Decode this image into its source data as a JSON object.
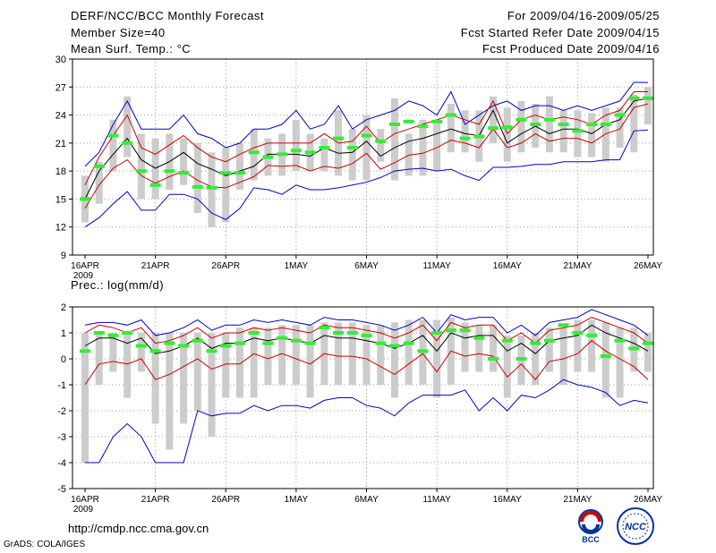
{
  "header": {
    "title": "DERF/NCC/BCC Monthly Forecast",
    "member_size": "Member Size=40",
    "variable": "Mean Surf. Temp.: °C",
    "for_period": "For 2009/04/16-2009/05/25",
    "started": "Fcst Started Refer Date 2009/04/15",
    "produced": "Fcst Produced Date 2009/04/16"
  },
  "footer": {
    "url": "http://cmdp.ncc.cma.gov.cn",
    "credit": "GrADS: COLA/IGES",
    "logo_bcc": "BCC",
    "logo_ncc": "NCC"
  },
  "colors": {
    "median": "#000000",
    "inner": "#cc0000",
    "outer": "#0000cc",
    "ensemble_mean": "#33ee33",
    "box": "#cccccc"
  },
  "chart_data": [
    {
      "type": "box-ensemble",
      "title": "Mean Surf. Temp.: °C",
      "ylim": [
        9,
        30
      ],
      "yticks": [
        9,
        12,
        15,
        18,
        21,
        24,
        27,
        30
      ],
      "x_tick_labels": [
        "16APR",
        "21APR",
        "26APR",
        "1MAY",
        "6MAY",
        "11MAY",
        "16MAY",
        "21MAY",
        "26MAY"
      ],
      "x_sub_label": "2009",
      "days": 41,
      "median": [
        15.0,
        18.0,
        19.8,
        21.5,
        19.2,
        18.3,
        19.0,
        20.0,
        18.8,
        18.2,
        17.5,
        18.0,
        18.5,
        19.8,
        19.8,
        19.8,
        19.6,
        20.5,
        19.9,
        20.0,
        21.2,
        19.6,
        20.5,
        21.2,
        21.5,
        22.0,
        22.5,
        22.0,
        21.8,
        24.5,
        21.0,
        22.0,
        22.8,
        22.0,
        22.5,
        22.5,
        22.0,
        23.0,
        23.5,
        25.5,
        25.8
      ],
      "upper_red": [
        16.5,
        19.5,
        21.8,
        24.0,
        20.5,
        19.8,
        20.8,
        21.8,
        20.5,
        19.5,
        19.0,
        19.8,
        20.5,
        21.0,
        21.0,
        21.0,
        21.0,
        22.0,
        21.0,
        21.2,
        22.8,
        21.0,
        22.0,
        22.5,
        23.0,
        23.5,
        24.0,
        23.5,
        23.0,
        25.5,
        22.0,
        23.5,
        24.0,
        23.5,
        23.8,
        23.5,
        23.0,
        24.0,
        24.5,
        26.5,
        26.5
      ],
      "lower_red": [
        14.0,
        16.5,
        18.3,
        19.2,
        17.5,
        16.7,
        17.4,
        18.0,
        17.0,
        16.3,
        16.2,
        16.8,
        17.4,
        18.6,
        18.5,
        18.6,
        18.0,
        18.5,
        18.3,
        18.8,
        19.9,
        18.2,
        18.9,
        19.7,
        19.9,
        20.5,
        21.3,
        21.0,
        20.5,
        22.5,
        20.5,
        21.0,
        22.0,
        21.2,
        21.5,
        21.5,
        21.0,
        22.0,
        22.5,
        24.8,
        25.2
      ],
      "upper_blue": [
        18.5,
        20.0,
        23.0,
        25.5,
        22.5,
        22.5,
        22.5,
        24.0,
        22.0,
        21.5,
        20.5,
        21.0,
        22.5,
        22.5,
        23.0,
        24.5,
        22.5,
        23.0,
        25.0,
        22.5,
        23.5,
        24.0,
        24.5,
        25.5,
        25.0,
        24.0,
        26.5,
        23.0,
        24.0,
        25.0,
        25.5,
        24.5,
        25.0,
        25.0,
        24.5,
        25.0,
        24.5,
        25.0,
        25.5,
        27.5,
        27.5
      ],
      "lower_blue": [
        12.0,
        13.0,
        14.5,
        15.8,
        13.8,
        13.8,
        15.5,
        15.5,
        15.0,
        13.5,
        12.8,
        14.0,
        16.2,
        16.0,
        15.5,
        16.5,
        16.0,
        16.0,
        16.2,
        16.5,
        16.8,
        17.3,
        18.0,
        18.2,
        18.3,
        18.0,
        18.2,
        17.5,
        17.0,
        18.4,
        18.4,
        18.5,
        18.7,
        18.7,
        19.0,
        19.0,
        19.0,
        19.2,
        19.2,
        22.3,
        22.4
      ],
      "box_high": [
        17.5,
        19.0,
        23.5,
        26.0,
        22.0,
        21.5,
        22.0,
        21.5,
        21.0,
        20.0,
        20.5,
        21.0,
        22.5,
        21.5,
        22.0,
        23.5,
        22.0,
        21.5,
        24.5,
        22.5,
        24.0,
        22.5,
        25.8,
        22.0,
        23.5,
        23.5,
        25.2,
        24.5,
        24.5,
        26.0,
        24.8,
        25.5,
        25.2,
        26.0,
        24.5,
        24.5,
        24.2,
        24.8,
        24.8,
        26.2,
        27.0
      ],
      "box_low": [
        12.5,
        14.5,
        18.0,
        19.5,
        15.0,
        15.0,
        16.0,
        16.5,
        13.5,
        12.0,
        12.5,
        16.0,
        17.0,
        17.5,
        17.5,
        18.0,
        18.0,
        18.0,
        17.5,
        17.0,
        17.0,
        19.0,
        17.0,
        17.5,
        17.5,
        18.0,
        20.0,
        20.0,
        19.0,
        21.0,
        19.0,
        20.0,
        20.5,
        20.0,
        20.0,
        19.5,
        19.5,
        19.0,
        20.5,
        20.0,
        23.0
      ],
      "ensemble_mean": [
        15.0,
        18.5,
        21.8,
        21.0,
        18.0,
        16.5,
        18.0,
        17.8,
        16.3,
        16.2,
        17.8,
        17.8,
        20.0,
        19.5,
        19.8,
        20.2,
        20.0,
        20.5,
        21.5,
        20.5,
        21.8,
        21.2,
        23.0,
        23.3,
        22.8,
        23.3,
        24.0,
        21.5,
        21.7,
        22.6,
        22.7,
        23.5,
        23.0,
        23.5,
        23.0,
        22.3,
        23.0,
        23.0,
        24.0,
        25.8,
        25.8
      ]
    },
    {
      "type": "box-ensemble",
      "title": "Prec.: log(mm/d)",
      "ylim": [
        -5,
        2
      ],
      "yticks": [
        -5,
        -4,
        -3,
        -2,
        -1,
        0,
        1,
        2
      ],
      "x_tick_labels": [
        "16APR",
        "21APR",
        "26APR",
        "1MAY",
        "6MAY",
        "11MAY",
        "16MAY",
        "21MAY",
        "26MAY"
      ],
      "x_sub_label": "2009",
      "days": 41,
      "median": [
        0.5,
        0.8,
        0.8,
        0.6,
        0.8,
        0.2,
        0.3,
        0.5,
        0.8,
        0.4,
        0.6,
        0.6,
        0.8,
        0.7,
        0.8,
        0.7,
        0.6,
        0.9,
        0.8,
        0.8,
        0.7,
        0.6,
        0.4,
        0.6,
        0.9,
        0.3,
        1.0,
        0.8,
        0.9,
        0.9,
        0.3,
        0.6,
        0.2,
        0.7,
        0.8,
        0.9,
        1.3,
        1.0,
        0.8,
        0.6,
        0.3
      ],
      "upper_red": [
        1.0,
        1.3,
        1.2,
        1.0,
        1.2,
        0.6,
        0.7,
        0.9,
        1.2,
        0.8,
        1.0,
        1.0,
        1.2,
        1.1,
        1.2,
        1.1,
        1.0,
        1.3,
        1.2,
        1.2,
        1.1,
        1.0,
        0.8,
        1.0,
        1.3,
        0.7,
        1.4,
        1.2,
        1.3,
        1.3,
        0.7,
        1.0,
        0.6,
        1.1,
        1.2,
        1.3,
        1.6,
        1.4,
        1.2,
        1.0,
        0.6
      ],
      "lower_red": [
        -1.0,
        -0.2,
        -0.1,
        -0.2,
        0.0,
        -0.8,
        -0.6,
        -0.3,
        0.0,
        -0.4,
        -0.2,
        -0.2,
        0.2,
        0.0,
        0.2,
        0.0,
        -0.2,
        0.2,
        0.1,
        0.1,
        0.0,
        -0.3,
        -0.6,
        -0.2,
        0.2,
        -0.5,
        0.3,
        0.1,
        0.2,
        0.1,
        -0.7,
        -0.2,
        -0.8,
        -0.1,
        0.0,
        0.2,
        0.7,
        0.3,
        0.0,
        -0.3,
        -0.8
      ],
      "upper_blue": [
        1.3,
        1.4,
        1.4,
        1.3,
        1.5,
        0.9,
        1.0,
        1.2,
        1.5,
        1.1,
        1.3,
        1.3,
        1.5,
        1.4,
        1.5,
        1.4,
        1.3,
        1.6,
        1.5,
        1.5,
        1.4,
        1.3,
        1.1,
        1.3,
        1.6,
        1.0,
        1.7,
        1.5,
        1.6,
        1.6,
        1.0,
        1.3,
        0.9,
        1.4,
        1.5,
        1.6,
        1.9,
        1.7,
        1.5,
        1.3,
        0.9
      ],
      "lower_blue": [
        -4.0,
        -4.0,
        -3.0,
        -2.5,
        -3.0,
        -4.0,
        -4.0,
        -4.0,
        -2.0,
        -2.2,
        -2.1,
        -2.1,
        -1.8,
        -2.0,
        -1.8,
        -1.8,
        -1.9,
        -1.6,
        -1.5,
        -1.5,
        -1.8,
        -1.9,
        -2.2,
        -1.7,
        -1.4,
        -1.4,
        -1.4,
        -1.2,
        -2.0,
        -1.5,
        -2.0,
        -1.4,
        -1.5,
        -1.2,
        -0.8,
        -1.0,
        -1.1,
        -1.3,
        -1.8,
        -1.6,
        -1.7
      ],
      "box_high": [
        1.0,
        1.0,
        1.0,
        1.0,
        1.0,
        1.0,
        1.0,
        1.0,
        1.0,
        1.0,
        1.0,
        1.2,
        1.2,
        1.2,
        1.3,
        1.3,
        1.3,
        1.4,
        1.4,
        1.4,
        1.3,
        1.3,
        1.4,
        1.5,
        1.5,
        1.5,
        1.6,
        1.4,
        1.3,
        1.3,
        0.9,
        0.9,
        1.0,
        1.2,
        1.2,
        1.5,
        1.5,
        1.4,
        1.2,
        1.2,
        1.0
      ],
      "box_low": [
        -4.0,
        -1.0,
        -0.5,
        -1.5,
        -0.5,
        -2.5,
        -3.5,
        -2.5,
        -2.0,
        -3.0,
        -1.5,
        -1.5,
        -1.5,
        -1.0,
        -1.0,
        -1.0,
        -1.5,
        -1.0,
        -1.0,
        -1.0,
        -1.0,
        -1.0,
        -1.5,
        -1.0,
        -1.0,
        -1.5,
        -1.0,
        -0.5,
        -0.5,
        -0.5,
        -1.5,
        -1.0,
        -1.0,
        -0.5,
        -1.0,
        -0.5,
        -0.5,
        -1.5,
        -1.5,
        -0.5,
        -0.5
      ],
      "ensemble_mean": [
        0.3,
        1.0,
        0.9,
        1.0,
        0.5,
        0.3,
        0.6,
        0.5,
        0.7,
        0.3,
        0.5,
        0.6,
        1.0,
        0.6,
        0.8,
        0.7,
        0.6,
        1.2,
        1.0,
        1.0,
        0.9,
        0.6,
        0.5,
        0.6,
        0.3,
        1.0,
        1.1,
        1.1,
        0.8,
        0.0,
        0.7,
        0.0,
        0.6,
        0.7,
        1.3,
        1.0,
        0.9,
        0.1,
        0.7,
        0.4,
        0.6
      ]
    }
  ]
}
